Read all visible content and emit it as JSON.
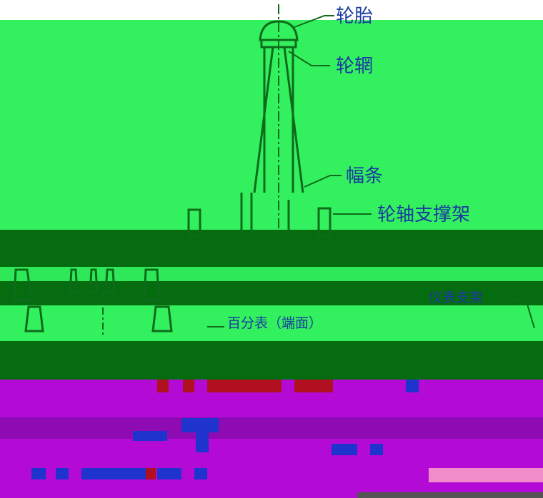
{
  "labels": {
    "tire": "轮胎",
    "rim": "轮辋",
    "spoke": "幅条",
    "axle_support": "轮轴支撑架",
    "gauge_stand": "仪表支架",
    "dial_indicator_end": "百分表（端面）"
  },
  "colors": {
    "band_green": "#33f05f",
    "band_dark_green": "#066c10",
    "band_magenta": "#b30ad6",
    "band_dark_magenta": "#8e0bb3",
    "line": "#0d6b1a",
    "label": "#1a3aa0",
    "red_block": "#b0101f",
    "blue_block": "#1e34cc"
  }
}
